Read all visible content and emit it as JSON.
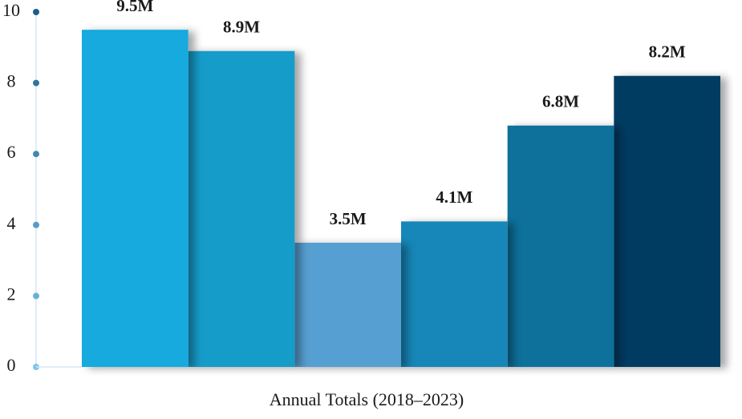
{
  "chart_data": {
    "type": "bar",
    "x_label": "Annual Totals (2018–2023)",
    "categories": [
      null,
      null,
      null,
      null,
      null,
      null
    ],
    "values": [
      9.5,
      8.9,
      3.5,
      4.1,
      6.8,
      8.2
    ],
    "value_labels": [
      "9.5M",
      "8.9M",
      "3.5M",
      "4.1M",
      "6.8M",
      "8.2M"
    ],
    "colors": [
      "#12aade",
      "#129cc9",
      "#569fd2",
      "#1787b8",
      "#0e719b",
      "#063a62"
    ],
    "ylim": [
      0,
      10
    ],
    "yticks": [
      0,
      2,
      4,
      6,
      8,
      10
    ],
    "grid": false
  }
}
